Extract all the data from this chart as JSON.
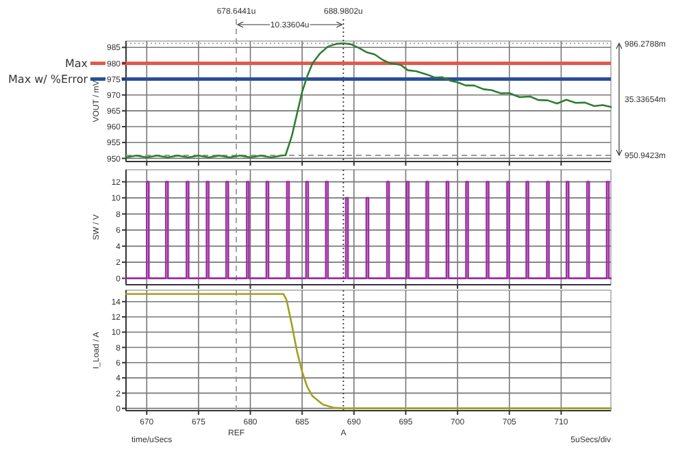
{
  "chart_data": [
    {
      "type": "line",
      "ylabel": "VOUT / mV",
      "xlim": [
        668,
        714.8
      ],
      "ylim": [
        949,
        987
      ],
      "xticks": [
        670,
        675,
        680,
        685,
        690,
        695,
        700,
        705,
        710
      ],
      "yticks": [
        950,
        955,
        960,
        965,
        970,
        975,
        980,
        985
      ],
      "grid": true,
      "tick_labels": "y",
      "series": [
        {
          "color": "#2e7d32",
          "x": [
            668,
            669,
            670,
            671,
            672,
            673,
            674,
            675,
            676,
            677,
            678,
            679,
            680,
            681,
            682,
            683,
            683.4,
            684,
            684.5,
            685,
            685.5,
            686,
            686.7,
            687.5,
            688.3,
            689,
            689.7,
            690.5,
            691.2,
            692,
            692.8,
            693.5,
            694.5,
            695.2,
            696,
            697,
            697.8,
            698.5,
            699.3,
            700,
            700.8,
            701.6,
            702.5,
            703.3,
            704.2,
            705,
            706,
            707,
            707.8,
            708.7,
            709.6,
            710.5,
            711.4,
            712.3,
            713.2,
            714,
            714.8
          ],
          "values": [
            950.3,
            950.9,
            950.3,
            950.9,
            950.3,
            950.9,
            950.3,
            950.9,
            950.3,
            950.9,
            950.3,
            950.9,
            950.3,
            950.9,
            950.3,
            950.9,
            951,
            957,
            964,
            971,
            976,
            980,
            983,
            985.3,
            986.1,
            986.3,
            986,
            984.8,
            983.5,
            982.8,
            981,
            980,
            979.5,
            977.8,
            977.5,
            976.5,
            975.5,
            975.6,
            974.5,
            974,
            973,
            973,
            971.8,
            971.5,
            970.5,
            970.6,
            969.3,
            969.5,
            968.4,
            968.3,
            967.3,
            968.5,
            967.5,
            967.6,
            966.5,
            966.8,
            966.2
          ]
        }
      ],
      "ref_lines": [
        {
          "axis": "x",
          "value": 678.6441,
          "label": "678.6441u",
          "line_style": "dashed",
          "color": "#999999"
        },
        {
          "axis": "x",
          "value": 688.9802,
          "label": "688.9802u",
          "line_style": "dotted",
          "color": "#333333"
        },
        {
          "axis": "y",
          "value": 980,
          "label": "Max",
          "color": "#e05a4e"
        },
        {
          "axis": "y",
          "value": 975,
          "label": "Max w/ %Error",
          "color": "#2a4d9b"
        },
        {
          "axis": "y",
          "value": 986.2788,
          "label": "986.2788m",
          "line_style": "dotted",
          "color": "#999999"
        },
        {
          "axis": "y",
          "value": 950.9423,
          "label": "950.9423m",
          "line_style": "dashed",
          "color": "#999999"
        }
      ],
      "annotations": [
        "10.33604u",
        "35.33654m"
      ]
    },
    {
      "type": "line",
      "ylabel": "SW / V",
      "xlim": [
        668,
        714.8
      ],
      "ylim": [
        -0.8,
        13.5
      ],
      "xticks": [
        670,
        675,
        680,
        685,
        690,
        695,
        700,
        705,
        710
      ],
      "yticks": [
        0,
        2,
        4,
        6,
        8,
        10,
        12
      ],
      "grid": true,
      "tick_labels": "y",
      "series": [
        {
          "color": "#9b30a0",
          "x": [
            668,
            670,
            670,
            670.2,
            670.2,
            671.85,
            671.85,
            672.05,
            672.05,
            673.84,
            673.84,
            674.04,
            674.04,
            675.78,
            675.78,
            675.98,
            675.98,
            677.67,
            677.67,
            677.87,
            677.87,
            679.66,
            679.66,
            679.86,
            679.86,
            681.55,
            681.55,
            681.75,
            681.75,
            683.53,
            683.53,
            683.73,
            683.73,
            685.38,
            685.38,
            685.58,
            685.58,
            687.29,
            687.29,
            687.49,
            687.49,
            689.22,
            689.22,
            689.42,
            689.42,
            691.2,
            691.2,
            691.4,
            691.4,
            693.19,
            693.19,
            693.39,
            693.39,
            695.09,
            695.09,
            695.29,
            695.29,
            696.98,
            696.98,
            697.18,
            697.18,
            698.93,
            698.93,
            699.13,
            699.13,
            700.82,
            700.82,
            701.02,
            701.02,
            702.8,
            702.8,
            703,
            703,
            704.79,
            704.79,
            704.99,
            704.99,
            706.64,
            706.64,
            706.84,
            706.84,
            708.62,
            708.62,
            708.82,
            708.82,
            710.52,
            710.52,
            710.72,
            710.72,
            712.5,
            712.5,
            712.7,
            712.7,
            714.4,
            714.4,
            714.6,
            714.6,
            714.8
          ],
          "values": [
            0,
            0,
            12,
            12,
            0,
            0,
            12,
            12,
            0,
            0,
            12,
            12,
            0,
            0,
            12,
            12,
            0,
            0,
            12,
            12,
            0,
            0,
            12,
            12,
            0,
            0,
            12,
            12,
            0,
            0,
            12,
            12,
            0,
            0,
            12,
            12,
            0,
            0,
            12,
            12,
            0,
            0,
            10,
            10,
            0,
            0,
            10,
            10,
            0,
            0,
            12,
            12,
            0,
            0,
            12,
            12,
            0,
            0,
            12,
            12,
            0,
            0,
            12,
            12,
            0,
            0,
            12,
            12,
            0,
            0,
            12,
            12,
            0,
            0,
            12,
            12,
            0,
            0,
            12,
            12,
            0,
            0,
            12,
            12,
            0,
            0,
            12,
            12,
            0,
            0,
            12,
            12,
            0,
            0,
            12,
            12,
            0,
            0
          ]
        }
      ],
      "ref_lines": [
        {
          "axis": "x",
          "value": 678.6441,
          "line_style": "dashed",
          "color": "#999999"
        },
        {
          "axis": "x",
          "value": 688.9802,
          "line_style": "dotted",
          "color": "#333333"
        }
      ]
    },
    {
      "type": "line",
      "ylabel": "I_Load / A",
      "xlabel": "time/uSecs",
      "xlim": [
        668,
        714.8
      ],
      "ylim": [
        -0.3,
        15.5
      ],
      "xticks": [
        670,
        675,
        680,
        685,
        690,
        695,
        700,
        705,
        710
      ],
      "yticks": [
        0,
        2,
        4,
        6,
        8,
        10,
        12,
        14
      ],
      "grid": true,
      "series": [
        {
          "color": "#a0a020",
          "x": [
            668,
            683.2,
            683.5,
            684,
            684.5,
            685,
            685.5,
            686,
            687,
            688,
            689,
            714.8
          ],
          "values": [
            15,
            15,
            14.2,
            11,
            7.5,
            4.8,
            2.8,
            1.6,
            0.5,
            0.1,
            0,
            0
          ]
        }
      ],
      "ref_lines": [
        {
          "axis": "x",
          "value": 678.6441,
          "label": "REF",
          "line_style": "dashed",
          "color": "#999999"
        },
        {
          "axis": "x",
          "value": 688.9802,
          "label": "A",
          "line_style": "dotted",
          "color": "#333333"
        }
      ],
      "annotations": [
        "5uSecs/div"
      ]
    }
  ]
}
